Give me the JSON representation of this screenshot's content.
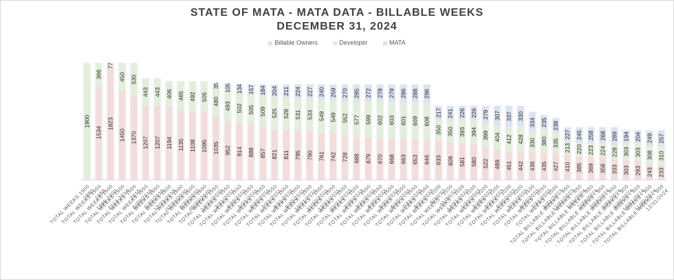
{
  "chart_data": {
    "type": "bar",
    "stacked": true,
    "title": "STATE OF MATA - MATA DATA - BILLABLE WEEKS",
    "subtitle": "DECEMBER 31, 2024",
    "xlabel": "",
    "ylabel": "",
    "ylim": [
      0,
      1900
    ],
    "grid": false,
    "legend_position": "top",
    "categories": [
      [
        "1980",
        "TOTAL WEEKS 1900"
      ],
      [
        "1988",
        "TOTAL WEEKS 1900"
      ],
      [
        "1996-2000",
        "TOTAL WEEKS 1900"
      ],
      [
        "2013-2014",
        "TOTAL WEEKS 1900"
      ],
      [
        "2015",
        "TOTAL WEEKS 1900"
      ],
      [
        "6/30/2019",
        "TOTAL WEEKS 1650"
      ],
      [
        "9/30/2019",
        "TOTAL WEEKS 1650"
      ],
      [
        "12/31/2019",
        "TOTAL WEEKS 1600"
      ],
      [
        "03/31/2020",
        "TOTAL WEEKS 1600"
      ],
      [
        "6/30/2020",
        "TOTAL WEEKS 1600"
      ],
      [
        "09/30/2020",
        "TOTAL WEEKS 1600"
      ],
      [
        "12/31/2020",
        "TOTAL WEEKS 1550"
      ],
      [
        "3/31/2021",
        "TOTAL WEEKS - 1550"
      ],
      [
        "4/30/2021",
        "TOTAL WEEKS - 1550"
      ],
      [
        "5/31/2021",
        "TOTAL WEEKS - 1550"
      ],
      [
        "6/30/2021",
        "TOTAL WEEKS - 1550"
      ],
      [
        "7/31/2021",
        "TOTAL WEEKS - 1550"
      ],
      [
        "8/31/2021",
        "TOTAL WEEKS - 1550"
      ],
      [
        "9/30/2021",
        "TOTAL WEEKS - 1550"
      ],
      [
        "10/31/2021",
        "TOTAL WEEKS - 1550"
      ],
      [
        "11/30/2021",
        "TOTAL WEEKS - 1550"
      ],
      [
        "12/31/2021",
        "TOTAL WEEKS - 1550"
      ],
      [
        "01/31/2022",
        "TOTAL WEEKS - 1550"
      ],
      [
        "2/28/2022",
        "TOTAL WEEKS - 1550"
      ],
      [
        "3/31/2022",
        "TOTAL WEEKS - 1550"
      ],
      [
        "4/30/2022",
        "TOTAL WEEKS - 1550"
      ],
      [
        "5/31/2022",
        "TOTAL WEEKS - 1550"
      ],
      [
        "6/30/2022",
        "TOTAL WEEKS - 1550"
      ],
      [
        "7/31/2022",
        "TOTAL WEEKS - 1550"
      ],
      [
        "8/31/2022",
        "TOTAL WEEKS - 1550"
      ],
      [
        "9/30/22",
        "TOTAL WEEKS - 1200"
      ],
      [
        "11/30/22",
        "TOTAL WEEKS - 1200"
      ],
      [
        "12/31/2022",
        "TOTAL WEEKS - 1200"
      ],
      [
        "1/31/2023",
        "TOTAL WEEKS - 1200"
      ],
      [
        "2/28/2023",
        "TOTAL WEEKS - 1200"
      ],
      [
        "3/31/2023",
        "TOTAL WEEKS - 1200"
      ],
      [
        "4/30/2023",
        "TOTAL WEEKS - 1200"
      ],
      [
        "5/31/2023",
        "TOTAL WEEKS - 1200"
      ],
      [
        "6/30/2023",
        "TOTAL WEEKS - 1100"
      ],
      [
        "7/31/2023",
        "TOTAL WEEKS - 1050"
      ],
      [
        "8/31/2023",
        "TOTAL WEEKS - 1000"
      ],
      [
        "12/31/2023",
        "TOTAL BILLABLE WEEKS - 850"
      ],
      [
        "1/31/2024",
        "TOTAL BILLABLE WEEKS - 850"
      ],
      [
        "2/29/2024",
        "TOTAL BILLABLE WEEKS -850"
      ],
      [
        "3/19/2024",
        "- TOTAL BILLABLE WEEKS - 850"
      ],
      [
        "5/31/2024",
        "- TOTAL BILLABLE WEEKS - 850"
      ],
      [
        "9/30/2024",
        "- TOTAL BILLABLE WEEKS - 800"
      ],
      [
        "10/31/2024",
        "- TOTAL BILLABLE WEEKS - 800"
      ],
      [
        "11/30/2024",
        "- TOTAL BILLABLE WEEKS - 800"
      ],
      [
        "12/31/2024",
        "- TOTAL BILLABLE WEEKS - 800"
      ]
    ],
    "series": [
      {
        "name": "Billable Owners",
        "color": "#f4dcdc",
        "values": [
          0,
          1534,
          1823,
          1450,
          1370,
          1207,
          1207,
          1194,
          1135,
          1108,
          1095,
          1035,
          952,
          914,
          888,
          857,
          821,
          811,
          795,
          790,
          761,
          742,
          728,
          688,
          679,
          670,
          668,
          663,
          653,
          646,
          633,
          609,
          581,
          580,
          522,
          489,
          451,
          442,
          436,
          435,
          427,
          410,
          385,
          369,
          358,
          333,
          303,
          293,
          243,
          233
        ]
      },
      {
        "name": "Developer",
        "color": "#e2efda",
        "values": [
          1900,
          366,
          77,
          450,
          530,
          443,
          443,
          406,
          465,
          492,
          505,
          480,
          493,
          502,
          505,
          509,
          525,
          528,
          531,
          533,
          549,
          549,
          552,
          577,
          599,
          602,
          603,
          601,
          609,
          608,
          350,
          350,
          393,
          394,
          399,
          404,
          412,
          428,
          330,
          380,
          335,
          213,
          220,
          223,
          224,
          228,
          303,
          303,
          308,
          310
        ]
      },
      {
        "name": "MATA",
        "color": "#dae3f3",
        "values": [
          null,
          null,
          null,
          null,
          null,
          null,
          null,
          null,
          null,
          null,
          null,
          35,
          105,
          134,
          157,
          184,
          204,
          211,
          224,
          227,
          240,
          259,
          270,
          285,
          272,
          278,
          279,
          286,
          288,
          296,
          217,
          241,
          226,
          226,
          279,
          307,
          337,
          330,
          334,
          235,
          238,
          227,
          245,
          258,
          268,
          289,
          194,
          204,
          249,
          257
        ]
      }
    ]
  }
}
